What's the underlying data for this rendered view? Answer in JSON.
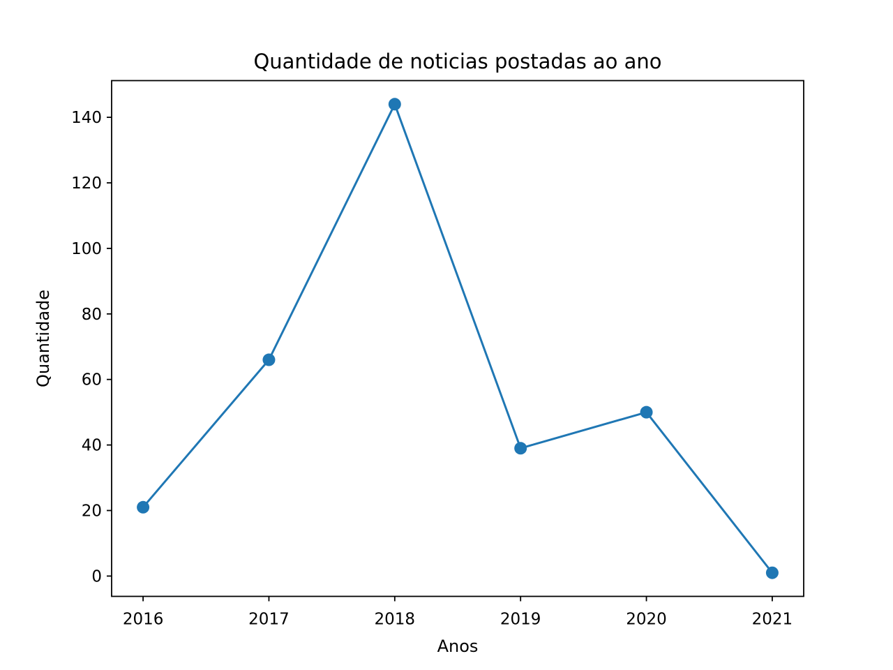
{
  "chart_data": {
    "type": "line",
    "title": "Quantidade de noticias postadas ao ano",
    "xlabel": "Anos",
    "ylabel": "Quantidade",
    "x": [
      2016,
      2017,
      2018,
      2019,
      2020,
      2021
    ],
    "x_tick_labels": [
      "2016",
      "2017",
      "2018",
      "2019",
      "2020",
      "2021"
    ],
    "y_ticks": [
      0,
      20,
      40,
      60,
      80,
      100,
      120,
      140
    ],
    "y_tick_labels": [
      "0",
      "20",
      "40",
      "60",
      "80",
      "100",
      "120",
      "140"
    ],
    "ylim": [
      -6.2,
      151.2
    ],
    "xlim": [
      2015.75,
      2021.25
    ],
    "grid": false,
    "series": [
      {
        "values": [
          21,
          66,
          144,
          39,
          50,
          1
        ],
        "color": "#1f77b4",
        "marker": "circle"
      }
    ]
  }
}
